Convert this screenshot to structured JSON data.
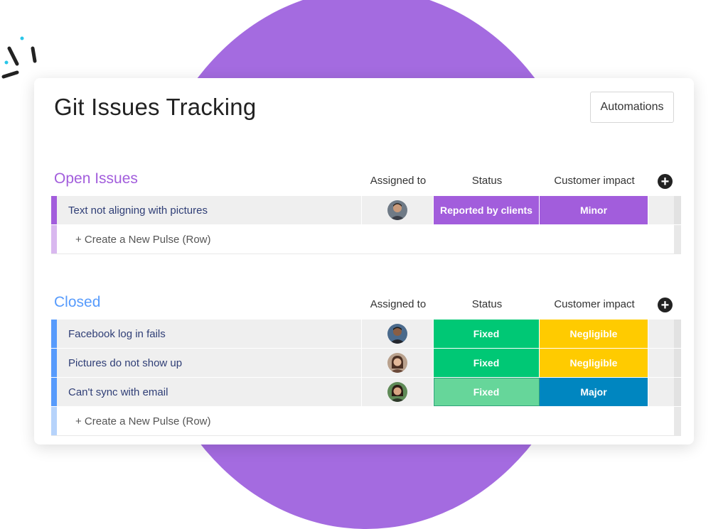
{
  "board": {
    "title": "Git Issues Tracking",
    "automations_label": "Automations"
  },
  "columns": {
    "assigned": "Assigned to",
    "status": "Status",
    "impact": "Customer impact"
  },
  "groups": [
    {
      "title": "Open Issues",
      "color": "#a25ddc",
      "light_color": "#d9b8ef",
      "rows": [
        {
          "name": "Text not aligning with pictures",
          "status": "Reported by clients",
          "status_color": "#a25ddc",
          "impact": "Minor",
          "impact_color": "#a25ddc"
        }
      ],
      "create_label": "+ Create a New Pulse (Row)"
    },
    {
      "title": "Closed",
      "color": "#579bfc",
      "light_color": "#b6d3fb",
      "rows": [
        {
          "name": "Facebook log in fails",
          "status": "Fixed",
          "status_color": "#00c875",
          "impact": "Negligible",
          "impact_color": "#ffcb00"
        },
        {
          "name": "Pictures do not show up",
          "status": "Fixed",
          "status_color": "#00c875",
          "impact": "Negligible",
          "impact_color": "#ffcb00"
        },
        {
          "name": "Can't sync with email",
          "status": "Fixed",
          "status_color": "#66d69a",
          "impact": "Major",
          "impact_color": "#0086c0"
        }
      ],
      "create_label": "+ Create a New Pulse (Row)"
    }
  ]
}
